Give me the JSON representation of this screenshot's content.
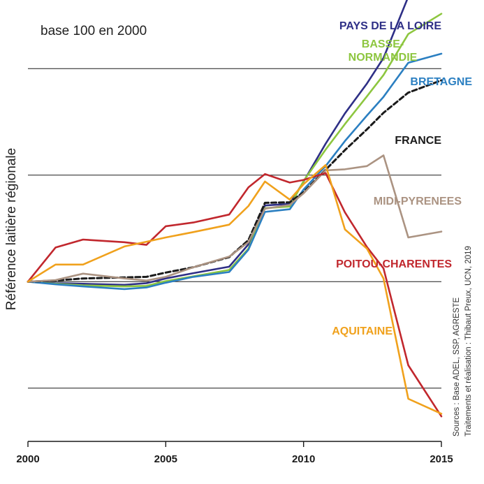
{
  "chart_data": {
    "type": "line",
    "title": "",
    "xlabel": "",
    "ylabel": "Référence laitière régionale",
    "subtitle_note": "base 100 en 2000",
    "sources_line1": "Sources : Base ADEL, SSP, AGRESTE",
    "sources_line2": "Traitements et réalisation : Thibaut Preux, UCN, 2019",
    "xlim": [
      2000,
      2015
    ],
    "ylim": [
      70,
      150
    ],
    "x_ticks": [
      2000,
      2005,
      2010,
      2015
    ],
    "x_tick_labels": [
      "2000",
      "2005",
      "2010",
      "2015"
    ],
    "y_gridlines": [
      80,
      100,
      120,
      140
    ],
    "grid": "horizontal",
    "legend": "inline labels",
    "series": [
      {
        "name": "PAYS DE LA LOIRE",
        "color": "#2e2f86",
        "dashed": false,
        "x": [
          2000,
          2001,
          2002,
          2003.5,
          2004.3,
          2005,
          2006,
          2007.3,
          2008,
          2008.6,
          2009.5,
          2010,
          2010.8,
          2011.5,
          2012.3,
          2012.9,
          2013.8,
          2015
        ],
        "y": [
          100,
          99.7,
          99.6,
          99.4,
          99.7,
          100.6,
          101.6,
          102.8,
          107,
          114.3,
          114.6,
          118.8,
          125.9,
          131.6,
          137.2,
          142,
          153.5,
          157
        ]
      },
      {
        "name": "BASSE-NORMANDIE",
        "color": "#8dc63f",
        "dashed": false,
        "x": [
          2000,
          2001,
          2002,
          2003.5,
          2004.3,
          2005,
          2006,
          2007.3,
          2008,
          2008.6,
          2009.5,
          2010,
          2010.8,
          2011.5,
          2012.3,
          2012.9,
          2013.8,
          2015
        ],
        "y": [
          100,
          99.6,
          99.3,
          99.1,
          99.2,
          100.1,
          101,
          102.2,
          106.2,
          113.8,
          114.1,
          118.9,
          124.8,
          129.6,
          134.8,
          138.8,
          146.5,
          150.3
        ]
      },
      {
        "name": "BRETAGNE",
        "color": "#2b7fc1",
        "dashed": false,
        "x": [
          2000,
          2001,
          2002,
          2003.5,
          2004.3,
          2005,
          2006,
          2007.3,
          2008,
          2008.6,
          2009.5,
          2010,
          2010.8,
          2011.5,
          2012.3,
          2012.9,
          2013.8,
          2015
        ],
        "y": [
          100,
          99.5,
          99.1,
          98.6,
          98.9,
          99.8,
          100.9,
          101.8,
          106,
          113.1,
          113.6,
          117.3,
          121.7,
          126.4,
          131.2,
          134.7,
          141.1,
          142.8
        ]
      },
      {
        "name": "FRANCE",
        "color": "#1a1a1a",
        "dashed": true,
        "x": [
          2000,
          2001,
          2002,
          2003.5,
          2004.3,
          2005,
          2006,
          2007.3,
          2008,
          2008.6,
          2009.5,
          2010,
          2010.8,
          2011.5,
          2012.3,
          2012.9,
          2013.8,
          2015
        ],
        "y": [
          100,
          100.2,
          100.6,
          100.8,
          100.9,
          101.7,
          102.7,
          104.6,
          107.8,
          114.8,
          114.9,
          116.8,
          121,
          124.7,
          128.6,
          131.7,
          135.5,
          137.8
        ]
      },
      {
        "name": "MIDI-PYRENEES",
        "color": "#ab9382",
        "dashed": false,
        "x": [
          2000,
          2001,
          2002,
          2003.5,
          2004.3,
          2005,
          2006,
          2007.3,
          2008,
          2008.6,
          2009.5,
          2010,
          2010.8,
          2011.5,
          2012.3,
          2012.9,
          2013.8,
          2015
        ],
        "y": [
          100,
          100.3,
          101.5,
          100.6,
          100.2,
          100.9,
          102.7,
          104.7,
          107.4,
          113.7,
          114.4,
          116.6,
          120.9,
          121.1,
          121.7,
          123.7,
          108.3,
          109.4
        ]
      },
      {
        "name": "POITOU-CHARENTES",
        "color": "#c1272d",
        "dashed": false,
        "x": [
          2000,
          2001,
          2002,
          2003.5,
          2004.3,
          2005,
          2006,
          2007.3,
          2008,
          2008.6,
          2009.5,
          2010,
          2010.8,
          2011.5,
          2012.3,
          2012.9,
          2013.8,
          2015
        ],
        "y": [
          100,
          106.4,
          107.9,
          107.4,
          106.9,
          110.4,
          111.1,
          112.6,
          117.7,
          120.2,
          118.6,
          119.1,
          120.4,
          113,
          106.5,
          102.5,
          84.3,
          74.7
        ]
      },
      {
        "name": "AQUITAINE",
        "color": "#f0a11c",
        "dashed": false,
        "x": [
          2000,
          2001,
          2002,
          2003.5,
          2004.3,
          2005,
          2006,
          2007.3,
          2008,
          2008.6,
          2009.5,
          2010,
          2010.8,
          2011.5,
          2012.3,
          2012.9,
          2013.8,
          2015
        ],
        "y": [
          100,
          103.2,
          103.2,
          106.6,
          107.5,
          108.3,
          109.3,
          110.7,
          114.2,
          118.8,
          115.4,
          118.3,
          121.9,
          109.8,
          106.2,
          100.6,
          78,
          75.2
        ]
      }
    ],
    "labels": [
      {
        "series": "PAYS DE LA LOIRE",
        "lines": [
          "PAYS DE LA LOIRE"
        ],
        "anchor": "end"
      },
      {
        "series": "BASSE-NORMANDIE",
        "lines": [
          "BASSE-",
          "NORMANDIE"
        ],
        "anchor": "middle"
      },
      {
        "series": "BRETAGNE",
        "lines": [
          "BRETAGNE"
        ],
        "anchor": "end"
      },
      {
        "series": "FRANCE",
        "lines": [
          "FRANCE"
        ],
        "anchor": "end"
      },
      {
        "series": "MIDI-PYRENEES",
        "lines": [
          "MIDI-PYRENEES"
        ],
        "anchor": "end"
      },
      {
        "series": "POITOU-CHARENTES",
        "lines": [
          "POITOU-CHARENTES"
        ],
        "anchor": "end"
      },
      {
        "series": "AQUITAINE",
        "lines": [
          "AQUITAINE"
        ],
        "anchor": "end"
      }
    ]
  }
}
